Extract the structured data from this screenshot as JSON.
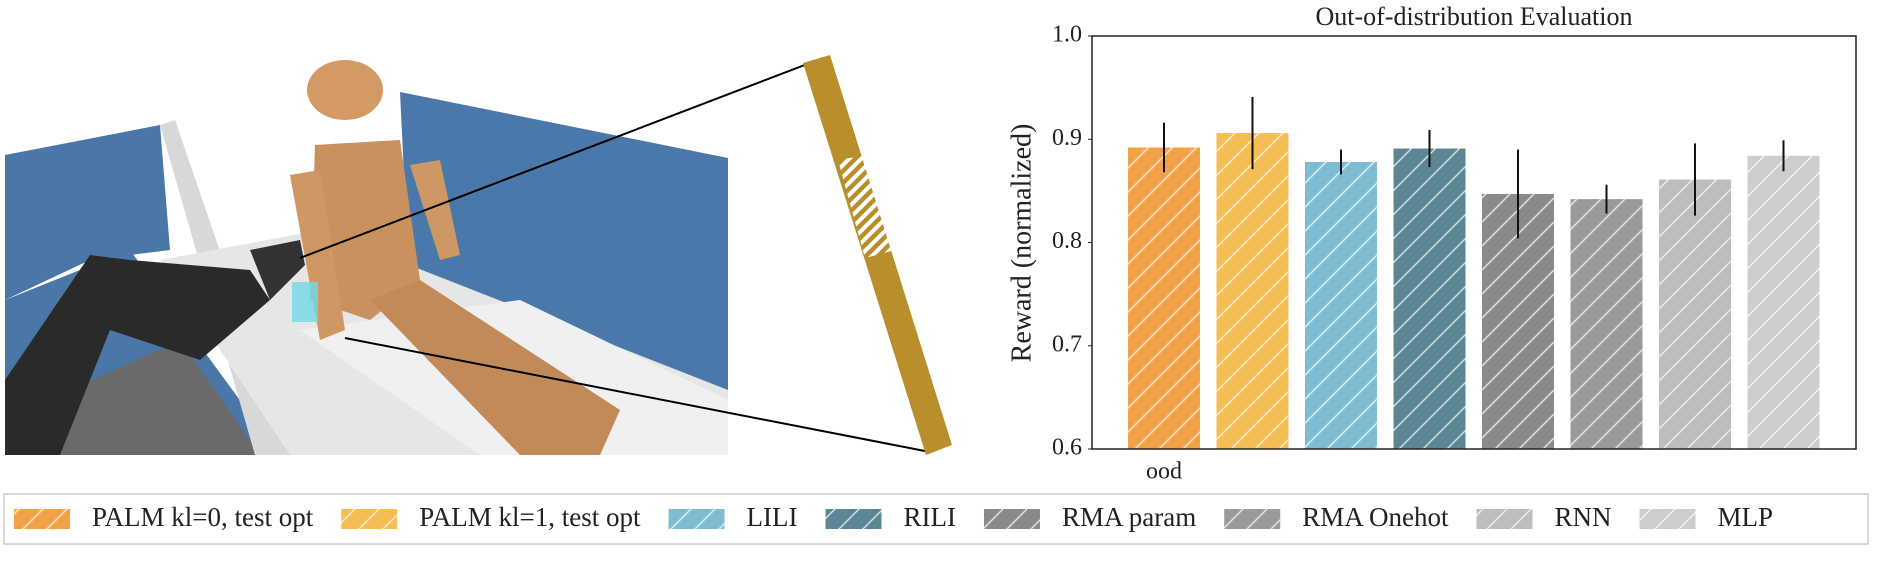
{
  "chart_data": {
    "type": "bar",
    "title": "Out-of-distribution Evaluation",
    "ylabel": "Reward (normalized)",
    "categories": [
      "ood"
    ],
    "series": [
      {
        "name": "PALM kl=0, test opt",
        "color": "#f4a24a",
        "values": [
          0.892
        ],
        "errors": [
          0.024
        ]
      },
      {
        "name": "PALM kl=1, test opt",
        "color": "#f5be55",
        "values": [
          0.906
        ],
        "errors": [
          0.035
        ]
      },
      {
        "name": "LILI",
        "color": "#7ebcd4",
        "values": [
          0.878
        ],
        "errors": [
          0.012
        ]
      },
      {
        "name": "RILI",
        "color": "#5b8693",
        "values": [
          0.891
        ],
        "errors": [
          0.018
        ]
      },
      {
        "name": "RMA param",
        "color": "#8a8a8a",
        "values": [
          0.847
        ],
        "errors": [
          0.043
        ]
      },
      {
        "name": "RMA Onehot",
        "color": "#9a9a9a",
        "values": [
          0.842
        ],
        "errors": [
          0.014
        ]
      },
      {
        "name": "RNN",
        "color": "#bdbdbd",
        "values": [
          0.861
        ],
        "errors": [
          0.035
        ]
      },
      {
        "name": "MLP",
        "color": "#cdcdcd",
        "values": [
          0.884
        ],
        "errors": [
          0.015
        ]
      }
    ],
    "ylim": [
      0.6,
      1.0
    ],
    "yticks": [
      {
        "value": 0.6,
        "label": "0.6"
      },
      {
        "value": 0.7,
        "label": "0.7"
      },
      {
        "value": 0.8,
        "label": "0.8"
      },
      {
        "value": 0.9,
        "label": "0.9"
      },
      {
        "value": 1.0,
        "label": "1.0"
      }
    ],
    "hatch": true
  }
}
